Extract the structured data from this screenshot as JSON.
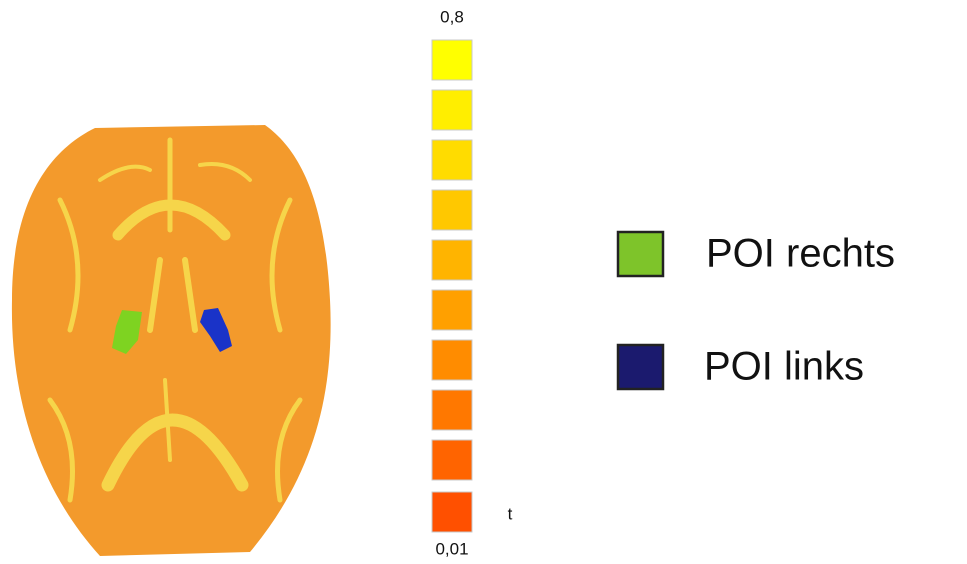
{
  "colorbar": {
    "max_label": "0,8",
    "min_label": "0,01",
    "unit_label": "t"
  },
  "legend": [
    {
      "label": "POI rechts"
    },
    {
      "label": "POI links"
    }
  ]
}
